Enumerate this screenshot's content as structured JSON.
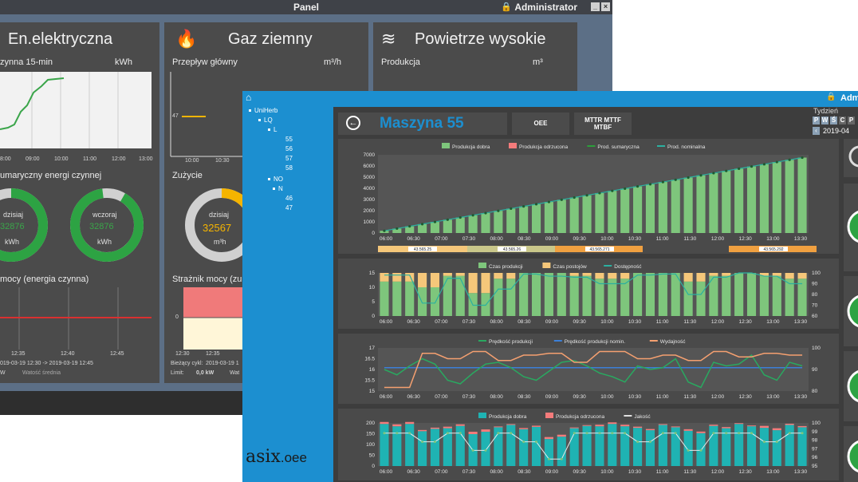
{
  "back": {
    "title": "Panel",
    "user": "Administrator",
    "electric": {
      "title": "En.elektryczna",
      "sub1": "zynna 15-min",
      "unit1": "kWh",
      "ticks": [
        "8:00",
        "09:00",
        "10:00",
        "11:00",
        "12:00",
        "13:00"
      ],
      "sub2": "umaryczny energi czynnej",
      "today_label": "dzisiaj",
      "today_value": "32876",
      "today_unit": "kWh",
      "yesterday_label": "wczoraj",
      "yesterday_value": "32876",
      "yesterday_unit": "kWh",
      "sub3": "mocy (energia czynna)",
      "ticks3": [
        "12:35",
        "12:40",
        "12:45"
      ],
      "range": "019-03-19 12:30 -> 2019-03-19 12:45",
      "w_label": "W",
      "watosc": "Watość średnia"
    },
    "gas": {
      "title": "Gaz ziemny",
      "sub1": "Przepływ główny",
      "unit1": "m³/h",
      "y_value": "47",
      "ticks": [
        "10:00",
        "10:30"
      ],
      "sub2": "Zużycie",
      "today_label": "dzisiaj",
      "today_value": "32567",
      "today_unit": "m³h",
      "sub3": "Strażnik mocy (zu",
      "y_zero": "0",
      "ticks3": [
        "12:30",
        "12:35"
      ],
      "cycle_label": "Bieżący cykl:",
      "cycle_value": "2019-03-19 1",
      "limit_label": "Limit:",
      "limit_value": "0,0 kW",
      "wat": "Wat"
    },
    "air": {
      "title": "Powietrze wysokie",
      "sub1": "Produkcja",
      "unit1": "m³"
    }
  },
  "front": {
    "user": "Adm",
    "tree": {
      "root": "UniHerb",
      "g1": "LQ",
      "g1a": "L",
      "items1": [
        "55",
        "56",
        "57",
        "58"
      ],
      "g2": "NO",
      "g2a": "N",
      "items2": [
        "46",
        "47"
      ]
    },
    "logo_main": "asix",
    "logo_sub": ".oee",
    "machine": "Maszyna 55",
    "btn_oee": "OEE",
    "btn_mttr": "MTTR MTTF",
    "btn_mtbf": "MTBF",
    "tydzien": "Tydzień",
    "days": [
      "P",
      "W",
      "Ś",
      "C",
      "P"
    ],
    "date": "2019-04",
    "time_ticks": [
      "06:00",
      "06:30",
      "07:00",
      "07:30",
      "08:00",
      "08:30",
      "09:00",
      "09:30",
      "10:00",
      "10:30",
      "11:00",
      "11:30",
      "12:00",
      "12:30",
      "13:00",
      "13:30"
    ],
    "c1": {
      "legend": [
        "Produkcja dobra",
        "Produkcja odrzucona",
        "Prod. sumaryczna",
        "Prod. nominalna"
      ],
      "yticks": [
        "7000",
        "6000",
        "5000",
        "4000",
        "3000",
        "2000",
        "1000",
        "0"
      ],
      "batches": [
        "43.565.25",
        "43.565.26",
        "43.565.271",
        "43.565.292"
      ]
    },
    "c2": {
      "legend": [
        "Czas produkcji",
        "Czas postojów",
        "Dostępność"
      ],
      "yticks": [
        "15",
        "10",
        "5",
        "0"
      ],
      "yticks_r": [
        "100",
        "90",
        "80",
        "70",
        "60"
      ]
    },
    "c3": {
      "legend": [
        "Prędkość produkcji",
        "Prędkość produkcji nomin.",
        "Wydajność"
      ],
      "yticks": [
        "17",
        "16.5",
        "16",
        "15.5",
        "15"
      ],
      "yticks_r": [
        "100",
        "90",
        "80"
      ]
    },
    "c4": {
      "legend": [
        "Produkcja dobra",
        "Produkcja odrzucona",
        "Jakość"
      ],
      "yticks": [
        "200",
        "150",
        "100",
        "50",
        "0"
      ],
      "yticks_r": [
        "100",
        "99",
        "98",
        "97",
        "96",
        "95"
      ]
    }
  },
  "chart_data": [
    {
      "type": "bar",
      "title": "",
      "categories": [
        "06:00",
        "06:30",
        "07:00",
        "07:30",
        "08:00",
        "08:30",
        "09:00",
        "09:30",
        "10:00",
        "10:30",
        "11:00",
        "11:30",
        "12:00",
        "12:30",
        "13:00",
        "13:30"
      ],
      "series": [
        {
          "name": "Produkcja dobra",
          "values": [
            300,
            700,
            1150,
            1600,
            2050,
            2500,
            2950,
            3350,
            3800,
            4250,
            4650,
            5050,
            5450,
            5850,
            6300,
            6750
          ]
        },
        {
          "name": "Prod. sumaryczna",
          "values": [
            300,
            700,
            1150,
            1600,
            2050,
            2500,
            2950,
            3350,
            3800,
            4250,
            4650,
            5050,
            5450,
            5850,
            6300,
            6750
          ]
        },
        {
          "name": "Prod. nominalna",
          "values": [
            300,
            700,
            1150,
            1600,
            2050,
            2500,
            2950,
            3350,
            3800,
            4250,
            4650,
            5050,
            5450,
            5850,
            6300,
            6750
          ]
        }
      ],
      "ylim": [
        0,
        7000
      ]
    },
    {
      "type": "bar",
      "title": "",
      "categories": [
        "06:00",
        "06:30",
        "07:00",
        "07:30",
        "08:00",
        "08:30",
        "09:00",
        "09:30",
        "10:00",
        "10:30",
        "11:00",
        "11:30",
        "12:00",
        "12:30",
        "13:00",
        "13:30"
      ],
      "series": [
        {
          "name": "Czas produkcji",
          "values": [
            12,
            10,
            14,
            8,
            13,
            15,
            15,
            14,
            13,
            15,
            15,
            12,
            14,
            15,
            14,
            13
          ]
        },
        {
          "name": "Czas postojów",
          "values": [
            3,
            5,
            1,
            7,
            2,
            0,
            0,
            1,
            2,
            0,
            0,
            3,
            1,
            0,
            1,
            2
          ]
        },
        {
          "name": "Dostępność",
          "values": [
            98,
            72,
            95,
            70,
            85,
            99,
            97,
            96,
            90,
            98,
            99,
            80,
            96,
            100,
            97,
            90
          ]
        }
      ],
      "ylim": [
        0,
        15
      ],
      "y2lim": [
        60,
        100
      ]
    },
    {
      "type": "line",
      "title": "",
      "categories": [
        "06:00",
        "06:30",
        "07:00",
        "07:30",
        "08:00",
        "08:30",
        "09:00",
        "09:30",
        "10:00",
        "10:30",
        "11:00",
        "11:30",
        "12:00",
        "12:30",
        "13:00",
        "13:30"
      ],
      "series": [
        {
          "name": "Prędkość produkcji",
          "values": [
            16.0,
            16.6,
            15.2,
            16.1,
            16.4,
            15.4,
            16.2,
            16.5,
            15.6,
            16.0,
            16.4,
            15.3,
            16.2,
            16.6,
            15.7,
            16.2
          ]
        },
        {
          "name": "Prędkość produkcji nomin.",
          "values": [
            16.1,
            16.1,
            16.1,
            16.1,
            16.1,
            16.1,
            16.1,
            16.1,
            16.1,
            16.1,
            16.1,
            16.1,
            16.1,
            16.1,
            16.1,
            16.1
          ]
        },
        {
          "name": "Wydajność",
          "values": [
            80,
            99,
            96,
            100,
            95,
            98,
            99,
            94,
            100,
            96,
            98,
            95,
            100,
            97,
            99,
            98
          ]
        }
      ],
      "ylim": [
        14.8,
        17.2
      ],
      "y2lim": [
        78,
        102
      ]
    },
    {
      "type": "bar",
      "title": "",
      "categories": [
        "06:00",
        "06:30",
        "07:00",
        "07:30",
        "08:00",
        "08:30",
        "09:00",
        "09:30",
        "10:00",
        "10:30",
        "11:00",
        "11:30",
        "12:00",
        "12:30",
        "13:00",
        "13:30"
      ],
      "series": [
        {
          "name": "Produkcja dobra",
          "values": [
            215,
            190,
            205,
            175,
            210,
            200,
            150,
            205,
            215,
            195,
            210,
            180,
            205,
            215,
            195,
            210
          ]
        },
        {
          "name": "Produkcja odrzucona",
          "values": [
            5,
            3,
            4,
            6,
            2,
            3,
            5,
            2,
            4,
            3,
            2,
            4,
            3,
            2,
            5,
            3
          ]
        },
        {
          "name": "Jakość",
          "values": [
            99,
            98,
            99,
            97,
            99,
            98,
            96,
            99,
            99,
            98,
            99,
            97,
            99,
            99,
            98,
            99
          ]
        }
      ],
      "ylim": [
        0,
        220
      ],
      "y2lim": [
        95,
        100
      ]
    }
  ]
}
